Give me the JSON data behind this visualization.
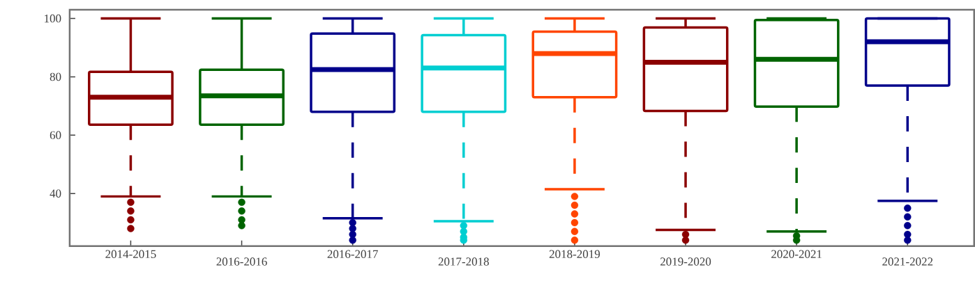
{
  "chart_data": {
    "type": "box",
    "categories": [
      "2014-2015",
      "2016-2016",
      "2016-2017",
      "2017-2018",
      "2018-2019",
      "2019-2020",
      "2020-2021",
      "2021-2022"
    ],
    "colors": [
      "#8b0000",
      "#006400",
      "#00008b",
      "#00ced1",
      "#ff4500",
      "#8b0000",
      "#006400",
      "#00008b"
    ],
    "boxes": [
      {
        "low": 39,
        "q1": 63.6,
        "median": 73,
        "q3": 81.7,
        "high": 100,
        "outliers": [
          37,
          34,
          31,
          28
        ]
      },
      {
        "low": 39,
        "q1": 63.6,
        "median": 73.5,
        "q3": 82.4,
        "high": 100,
        "outliers": [
          37,
          34,
          31,
          29
        ]
      },
      {
        "low": 31.5,
        "q1": 68,
        "median": 82.5,
        "q3": 94.8,
        "high": 100,
        "outliers": [
          30,
          28,
          26,
          24
        ]
      },
      {
        "low": 30.5,
        "q1": 68,
        "median": 83,
        "q3": 94.3,
        "high": 100,
        "outliers": [
          29,
          27,
          25,
          24
        ]
      },
      {
        "low": 41.5,
        "q1": 73,
        "median": 88,
        "q3": 95.5,
        "high": 100,
        "outliers": [
          39,
          36,
          33,
          30,
          27,
          24
        ]
      },
      {
        "low": 27.5,
        "q1": 68.3,
        "median": 85,
        "q3": 96.9,
        "high": 100,
        "outliers": [
          26,
          24
        ]
      },
      {
        "low": 27,
        "q1": 69.8,
        "median": 86,
        "q3": 99.5,
        "high": 100,
        "outliers": [
          25.5,
          24
        ]
      },
      {
        "low": 37.5,
        "q1": 77,
        "median": 92,
        "q3": 100,
        "high": 100,
        "outliers": [
          35,
          32,
          29,
          26,
          24
        ]
      }
    ],
    "ylim": [
      22,
      103
    ],
    "yticks": [
      40,
      60,
      80,
      100
    ]
  }
}
